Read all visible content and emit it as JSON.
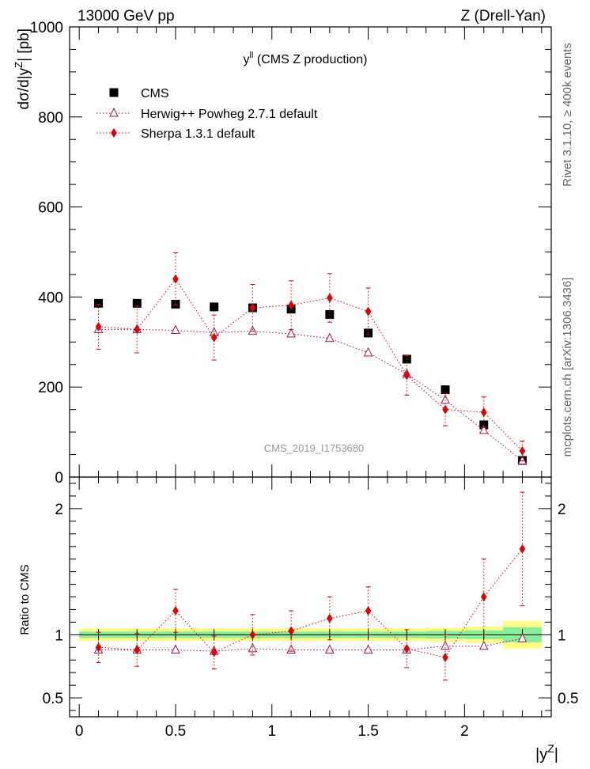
{
  "header": {
    "left": "13000 GeV pp",
    "right": "Z (Drell-Yan)"
  },
  "side_labels": {
    "rivet": "Rivet 3.1.10, ≥ 400k events",
    "mcplots": "mcplots.cern.ch [arXiv:1306.3436]"
  },
  "chart_data": [
    {
      "type": "scatter",
      "title": "y",
      "title_sup": "ll",
      "title_rest": " (CMS Z production)",
      "watermark": "CMS_2019_I1753680",
      "ylabel": "dσ/d|y",
      "ylabel_sup": "Z",
      "ylabel_rest": "| [pb]",
      "xlim": [
        -0.05,
        2.45
      ],
      "ylim": [
        0,
        1000
      ],
      "yticks": [
        0,
        200,
        400,
        600,
        800,
        1000
      ],
      "ytick_labels": [
        "0",
        "200",
        "400",
        "600",
        "800",
        "1000"
      ],
      "x": [
        0.1,
        0.3,
        0.5,
        0.7,
        0.9,
        1.1,
        1.3,
        1.5,
        1.7,
        1.9,
        2.1,
        2.3
      ],
      "series": [
        {
          "name": "CMS",
          "marker": "square",
          "color": "#000000",
          "values": [
            386,
            386,
            384,
            378,
            376,
            373,
            361,
            320,
            262,
            194,
            116,
            37
          ]
        },
        {
          "name": "Herwig++ Powheg 2.7.1 default",
          "marker": "open-triangle",
          "color": "#a0105a",
          "values": [
            328,
            328,
            326,
            321,
            324,
            318,
            308,
            276,
            229,
            171,
            104,
            36
          ],
          "errors": [
            0,
            0,
            0,
            0,
            0,
            0,
            0,
            0,
            0,
            0,
            0,
            0
          ]
        },
        {
          "name": "Sherpa 1.3.1 default",
          "marker": "diamond",
          "color": "#e00000",
          "values": [
            334,
            328,
            440,
            310,
            376,
            382,
            398,
            368,
            226,
            150,
            144,
            58
          ],
          "errors": [
            50,
            52,
            58,
            50,
            52,
            54,
            54,
            52,
            44,
            36,
            34,
            22
          ]
        }
      ]
    },
    {
      "type": "scatter",
      "ylabel": "Ratio to CMS",
      "xlabel": "|y",
      "xlabel_sup": "Z",
      "xlabel_rest": "|",
      "xlim": [
        -0.05,
        2.45
      ],
      "ylim": [
        0.35,
        2.25
      ],
      "xticks": [
        0,
        0.5,
        1,
        1.5,
        2
      ],
      "xtick_labels": [
        "0",
        "0.5",
        "1",
        "1.5",
        "2"
      ],
      "yticks": [
        0.5,
        1,
        2
      ],
      "ytick_labels": [
        "0.5",
        "1",
        "2"
      ],
      "x": [
        0.1,
        0.3,
        0.5,
        0.7,
        0.9,
        1.1,
        1.3,
        1.5,
        1.7,
        1.9,
        2.1,
        2.3
      ],
      "band_edges": [
        0,
        0.2,
        0.4,
        0.6,
        0.8,
        1.0,
        1.2,
        1.4,
        1.6,
        1.8,
        2.0,
        2.2,
        2.4
      ],
      "band_inner": [
        0.025,
        0.025,
        0.025,
        0.025,
        0.025,
        0.025,
        0.025,
        0.025,
        0.025,
        0.03,
        0.035,
        0.06
      ],
      "band_outer": [
        0.05,
        0.05,
        0.05,
        0.05,
        0.05,
        0.05,
        0.05,
        0.05,
        0.05,
        0.055,
        0.065,
        0.11
      ],
      "series": [
        {
          "name": "Herwig++ Powheg 2.7.1 default",
          "marker": "open-triangle",
          "color": "#a0105a",
          "values": [
            0.88,
            0.88,
            0.88,
            0.87,
            0.89,
            0.88,
            0.88,
            0.88,
            0.88,
            0.91,
            0.91,
            0.97
          ],
          "errors": [
            0,
            0,
            0,
            0,
            0,
            0,
            0,
            0,
            0,
            0,
            0,
            0
          ]
        },
        {
          "name": "Sherpa 1.3.1 default",
          "marker": "diamond",
          "color": "#e00000",
          "values": [
            0.9,
            0.88,
            1.19,
            0.86,
            1.0,
            1.03,
            1.13,
            1.19,
            0.89,
            0.82,
            1.3,
            1.68
          ],
          "errors": [
            0.12,
            0.13,
            0.17,
            0.13,
            0.16,
            0.16,
            0.17,
            0.19,
            0.15,
            0.18,
            0.3,
            0.45
          ]
        }
      ]
    }
  ]
}
